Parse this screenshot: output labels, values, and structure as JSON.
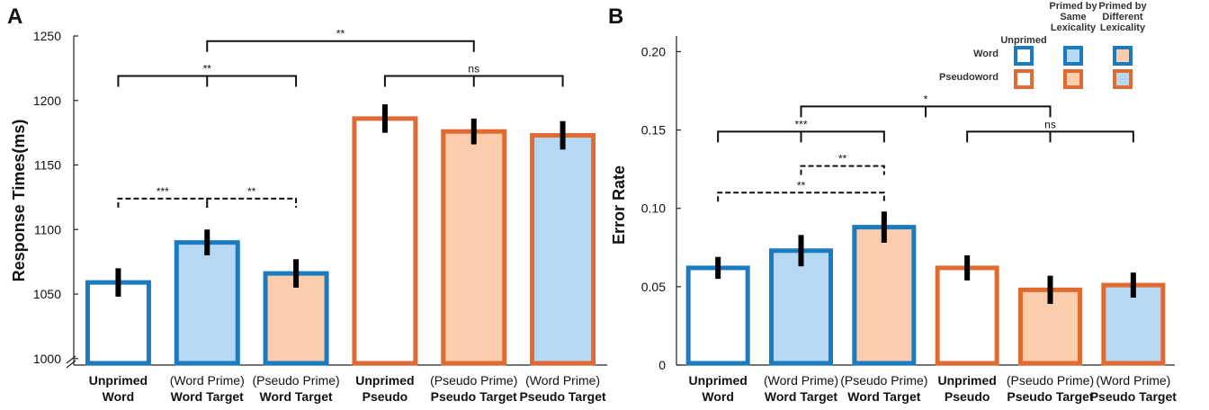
{
  "colors": {
    "word_edge": "#1a7bc0",
    "pseudo_edge": "#e06a32",
    "fill_none": "#ffffff",
    "fill_word_prime": "#b7d8f2",
    "fill_pseudo_prime": "#fbcdad"
  },
  "chart_data": [
    {
      "type": "bar",
      "panel": "A",
      "ylabel": "Response Times(ms)",
      "ylim": [
        995,
        1250
      ],
      "yticks": [
        1000,
        1050,
        1100,
        1150,
        1200,
        1250
      ],
      "axis_break": true,
      "categories": [
        {
          "line1": "Unprimed",
          "line2": "Word",
          "line1_bold": true
        },
        {
          "line1": "(Word Prime)",
          "line2": "Word Target",
          "line1_bold": false
        },
        {
          "line1": "(Pseudo Prime)",
          "line2": "Word Target",
          "line1_bold": false
        },
        {
          "line1": "Unprimed",
          "line2": "Pseudo",
          "line1_bold": true
        },
        {
          "line1": "(Pseudo Prime)",
          "line2": "Pseudo Target",
          "line1_bold": false
        },
        {
          "line1": "(Word Prime)",
          "line2": "Pseudo Target",
          "line1_bold": false
        }
      ],
      "values": [
        1059,
        1090,
        1066,
        1186,
        1176,
        1173
      ],
      "errors": [
        11,
        10,
        11,
        11,
        10,
        11
      ],
      "edge": [
        "word",
        "word",
        "word",
        "pseudo",
        "pseudo",
        "pseudo"
      ],
      "fill": [
        "none",
        "word_prime",
        "pseudo_prime",
        "none",
        "pseudo_prime",
        "word_prime"
      ],
      "annotations": [
        {
          "from": 0,
          "to": 2,
          "y": 1219,
          "label": "**",
          "style": "solid",
          "mid_tick": true
        },
        {
          "from": 3,
          "to": 5,
          "y": 1219,
          "label": "ns",
          "style": "solid",
          "mid_tick": true
        },
        {
          "from": 1,
          "to": 4,
          "y": 1246,
          "label": "**",
          "style": "solid",
          "mid_tick": false
        },
        {
          "from": 0,
          "to": 1,
          "y": 1124,
          "label": "***",
          "style": "dashed",
          "mid_tick": false
        },
        {
          "from": 1,
          "to": 2,
          "y": 1124,
          "label": "**",
          "style": "dashed",
          "mid_tick": false
        }
      ]
    },
    {
      "type": "bar",
      "panel": "B",
      "ylabel": "Error Rate",
      "ylim": [
        0,
        0.21
      ],
      "yticks": [
        0,
        0.05,
        0.1,
        0.15,
        0.2
      ],
      "ytick_labels": [
        "0",
        "0.05",
        "0.10",
        "0.15",
        "0.20"
      ],
      "categories": [
        {
          "line1": "Unprimed",
          "line2": "Word",
          "line1_bold": true
        },
        {
          "line1": "(Word Prime)",
          "line2": "Word Target",
          "line1_bold": false
        },
        {
          "line1": "(Pseudo Prime)",
          "line2": "Word Target",
          "line1_bold": false
        },
        {
          "line1": "Unprimed",
          "line2": "Pseudo",
          "line1_bold": true
        },
        {
          "line1": "(Pseudo Prime)",
          "line2": "Pseudo Target",
          "line1_bold": false
        },
        {
          "line1": "(Word Prime)",
          "line2": "Pseudo Target",
          "line1_bold": false
        }
      ],
      "values": [
        0.062,
        0.073,
        0.088,
        0.062,
        0.048,
        0.051
      ],
      "errors": [
        0.007,
        0.01,
        0.01,
        0.008,
        0.009,
        0.008
      ],
      "edge": [
        "word",
        "word",
        "word",
        "pseudo",
        "pseudo",
        "pseudo"
      ],
      "fill": [
        "none",
        "word_prime",
        "pseudo_prime",
        "none",
        "pseudo_prime",
        "word_prime"
      ],
      "annotations": [
        {
          "from": 0,
          "to": 2,
          "y": 0.149,
          "label": "***",
          "style": "solid",
          "mid_tick": true
        },
        {
          "from": 3,
          "to": 5,
          "y": 0.149,
          "label": "ns",
          "style": "solid",
          "mid_tick": true
        },
        {
          "from": 1,
          "to": 4,
          "y": 0.165,
          "label": "*",
          "style": "solid",
          "mid_tick": true
        },
        {
          "from": 1,
          "to": 2,
          "y": 0.127,
          "label": "**",
          "style": "dashed",
          "mid_tick": false
        },
        {
          "from": 0,
          "to": 2,
          "y": 0.11,
          "label": "**",
          "style": "dashed",
          "mid_tick": false
        }
      ],
      "legend": {
        "columns": [
          "Unprimed",
          "Primed by Same Lexicality",
          "Primed by Different Lexicality"
        ],
        "columns_lines": [
          [
            "Unprimed"
          ],
          [
            "Primed by",
            "Same",
            "Lexicality"
          ],
          [
            "Primed by",
            "Different",
            "Lexicality"
          ]
        ],
        "rows": [
          {
            "label": "Word",
            "edge": "word",
            "fills": [
              "none",
              "word_prime",
              "pseudo_prime"
            ]
          },
          {
            "label": "Pseudoword",
            "edge": "pseudo",
            "fills": [
              "none",
              "pseudo_prime",
              "word_prime"
            ]
          }
        ]
      }
    }
  ]
}
